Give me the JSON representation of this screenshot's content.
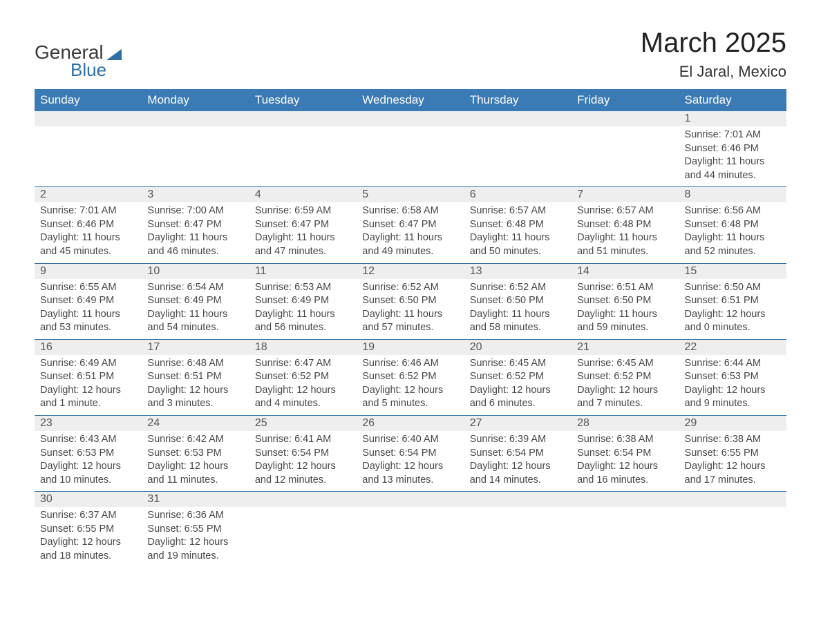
{
  "logo": {
    "word1": "General",
    "word2": "Blue"
  },
  "title": "March 2025",
  "location": "El Jaral, Mexico",
  "colors": {
    "header_bg": "#3a7ab5",
    "header_text": "#ffffff",
    "row_accent": "#2f6fa8",
    "daynum_bg": "#eeeeee",
    "body_text": "#474747",
    "title_text": "#222222"
  },
  "typography": {
    "title_fontsize": 40,
    "location_fontsize": 22,
    "weekday_fontsize": 17,
    "daynum_fontsize": 16,
    "cell_fontsize": 14.5
  },
  "weekdays": [
    "Sunday",
    "Monday",
    "Tuesday",
    "Wednesday",
    "Thursday",
    "Friday",
    "Saturday"
  ],
  "weeks": [
    [
      null,
      null,
      null,
      null,
      null,
      null,
      {
        "n": "1",
        "sr": "Sunrise: 7:01 AM",
        "ss": "Sunset: 6:46 PM",
        "dl": "Daylight: 11 hours and 44 minutes."
      }
    ],
    [
      {
        "n": "2",
        "sr": "Sunrise: 7:01 AM",
        "ss": "Sunset: 6:46 PM",
        "dl": "Daylight: 11 hours and 45 minutes."
      },
      {
        "n": "3",
        "sr": "Sunrise: 7:00 AM",
        "ss": "Sunset: 6:47 PM",
        "dl": "Daylight: 11 hours and 46 minutes."
      },
      {
        "n": "4",
        "sr": "Sunrise: 6:59 AM",
        "ss": "Sunset: 6:47 PM",
        "dl": "Daylight: 11 hours and 47 minutes."
      },
      {
        "n": "5",
        "sr": "Sunrise: 6:58 AM",
        "ss": "Sunset: 6:47 PM",
        "dl": "Daylight: 11 hours and 49 minutes."
      },
      {
        "n": "6",
        "sr": "Sunrise: 6:57 AM",
        "ss": "Sunset: 6:48 PM",
        "dl": "Daylight: 11 hours and 50 minutes."
      },
      {
        "n": "7",
        "sr": "Sunrise: 6:57 AM",
        "ss": "Sunset: 6:48 PM",
        "dl": "Daylight: 11 hours and 51 minutes."
      },
      {
        "n": "8",
        "sr": "Sunrise: 6:56 AM",
        "ss": "Sunset: 6:48 PM",
        "dl": "Daylight: 11 hours and 52 minutes."
      }
    ],
    [
      {
        "n": "9",
        "sr": "Sunrise: 6:55 AM",
        "ss": "Sunset: 6:49 PM",
        "dl": "Daylight: 11 hours and 53 minutes."
      },
      {
        "n": "10",
        "sr": "Sunrise: 6:54 AM",
        "ss": "Sunset: 6:49 PM",
        "dl": "Daylight: 11 hours and 54 minutes."
      },
      {
        "n": "11",
        "sr": "Sunrise: 6:53 AM",
        "ss": "Sunset: 6:49 PM",
        "dl": "Daylight: 11 hours and 56 minutes."
      },
      {
        "n": "12",
        "sr": "Sunrise: 6:52 AM",
        "ss": "Sunset: 6:50 PM",
        "dl": "Daylight: 11 hours and 57 minutes."
      },
      {
        "n": "13",
        "sr": "Sunrise: 6:52 AM",
        "ss": "Sunset: 6:50 PM",
        "dl": "Daylight: 11 hours and 58 minutes."
      },
      {
        "n": "14",
        "sr": "Sunrise: 6:51 AM",
        "ss": "Sunset: 6:50 PM",
        "dl": "Daylight: 11 hours and 59 minutes."
      },
      {
        "n": "15",
        "sr": "Sunrise: 6:50 AM",
        "ss": "Sunset: 6:51 PM",
        "dl": "Daylight: 12 hours and 0 minutes."
      }
    ],
    [
      {
        "n": "16",
        "sr": "Sunrise: 6:49 AM",
        "ss": "Sunset: 6:51 PM",
        "dl": "Daylight: 12 hours and 1 minute."
      },
      {
        "n": "17",
        "sr": "Sunrise: 6:48 AM",
        "ss": "Sunset: 6:51 PM",
        "dl": "Daylight: 12 hours and 3 minutes."
      },
      {
        "n": "18",
        "sr": "Sunrise: 6:47 AM",
        "ss": "Sunset: 6:52 PM",
        "dl": "Daylight: 12 hours and 4 minutes."
      },
      {
        "n": "19",
        "sr": "Sunrise: 6:46 AM",
        "ss": "Sunset: 6:52 PM",
        "dl": "Daylight: 12 hours and 5 minutes."
      },
      {
        "n": "20",
        "sr": "Sunrise: 6:45 AM",
        "ss": "Sunset: 6:52 PM",
        "dl": "Daylight: 12 hours and 6 minutes."
      },
      {
        "n": "21",
        "sr": "Sunrise: 6:45 AM",
        "ss": "Sunset: 6:52 PM",
        "dl": "Daylight: 12 hours and 7 minutes."
      },
      {
        "n": "22",
        "sr": "Sunrise: 6:44 AM",
        "ss": "Sunset: 6:53 PM",
        "dl": "Daylight: 12 hours and 9 minutes."
      }
    ],
    [
      {
        "n": "23",
        "sr": "Sunrise: 6:43 AM",
        "ss": "Sunset: 6:53 PM",
        "dl": "Daylight: 12 hours and 10 minutes."
      },
      {
        "n": "24",
        "sr": "Sunrise: 6:42 AM",
        "ss": "Sunset: 6:53 PM",
        "dl": "Daylight: 12 hours and 11 minutes."
      },
      {
        "n": "25",
        "sr": "Sunrise: 6:41 AM",
        "ss": "Sunset: 6:54 PM",
        "dl": "Daylight: 12 hours and 12 minutes."
      },
      {
        "n": "26",
        "sr": "Sunrise: 6:40 AM",
        "ss": "Sunset: 6:54 PM",
        "dl": "Daylight: 12 hours and 13 minutes."
      },
      {
        "n": "27",
        "sr": "Sunrise: 6:39 AM",
        "ss": "Sunset: 6:54 PM",
        "dl": "Daylight: 12 hours and 14 minutes."
      },
      {
        "n": "28",
        "sr": "Sunrise: 6:38 AM",
        "ss": "Sunset: 6:54 PM",
        "dl": "Daylight: 12 hours and 16 minutes."
      },
      {
        "n": "29",
        "sr": "Sunrise: 6:38 AM",
        "ss": "Sunset: 6:55 PM",
        "dl": "Daylight: 12 hours and 17 minutes."
      }
    ],
    [
      {
        "n": "30",
        "sr": "Sunrise: 6:37 AM",
        "ss": "Sunset: 6:55 PM",
        "dl": "Daylight: 12 hours and 18 minutes."
      },
      {
        "n": "31",
        "sr": "Sunrise: 6:36 AM",
        "ss": "Sunset: 6:55 PM",
        "dl": "Daylight: 12 hours and 19 minutes."
      },
      null,
      null,
      null,
      null,
      null
    ]
  ]
}
